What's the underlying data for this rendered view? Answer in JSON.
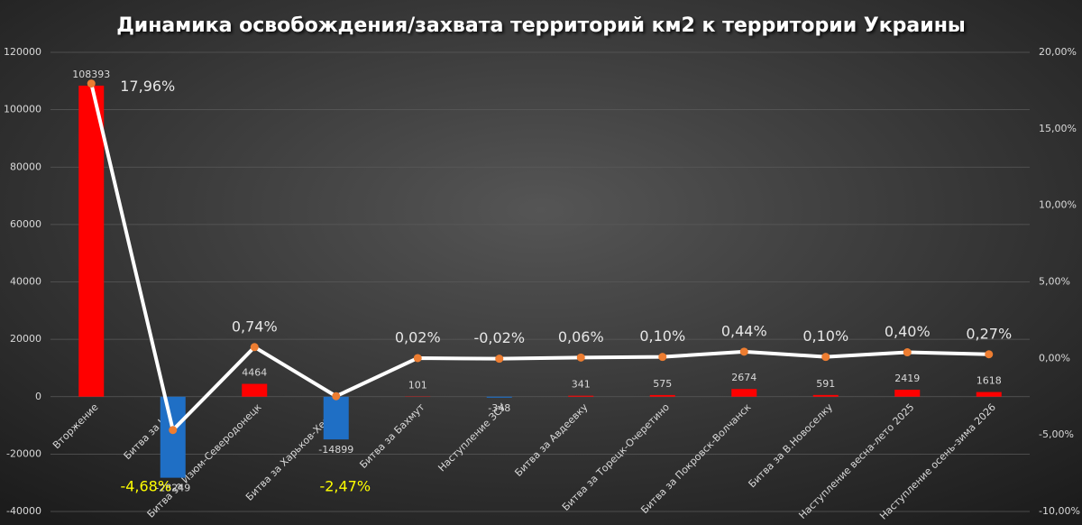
{
  "chart_data": {
    "type": "bar_line",
    "title": "Динамика освобождения/захвата территорий км2 к территории Украины",
    "categories": [
      "Вторжение",
      "Битва за Киев",
      "Битва за Изюм-Северодонецк",
      "Битва за Харьков-Херсон",
      "Битва за Бахмут",
      "Наступление ЗСУ",
      "Битва за Авдеевку",
      "Битва за Торецк-Очеретино",
      "Битва за Покровск-Волчанск",
      "Битва за В.Новоселку",
      "Наступление весна-лето 2025",
      "Наступление осень-зима 2026"
    ],
    "series": [
      {
        "type": "bar",
        "color": "#ff0000",
        "negative_color": "#1f6fc5",
        "values": [
          108393,
          -28249,
          4464,
          -14899,
          101,
          -348,
          341,
          575,
          2674,
          591,
          2419,
          1618
        ]
      },
      {
        "type": "line",
        "axis": "y2",
        "color": "#ffffff",
        "marker_color": "#ed7d31",
        "negative_label_color": "#ffff00",
        "values": [
          17.96,
          -4.68,
          0.74,
          -2.47,
          0.02,
          -0.02,
          0.06,
          0.1,
          0.44,
          0.1,
          0.4,
          0.27
        ],
        "value_labels": [
          "17,96%",
          "-4,68%",
          "0,74%",
          "-2,47%",
          "0,02%",
          "-0,02%",
          "0,06%",
          "0,10%",
          "0,44%",
          "0,10%",
          "0,40%",
          "0,27%"
        ]
      }
    ],
    "ylim": [
      -40000,
      120000
    ],
    "yticks": [
      -40000,
      -20000,
      0,
      20000,
      40000,
      60000,
      80000,
      100000,
      120000
    ],
    "y2lim": [
      -10,
      20
    ],
    "y2ticks": [
      {
        "value": -10,
        "label": "-10,00%"
      },
      {
        "value": -5,
        "label": "-5,00%"
      },
      {
        "value": 0,
        "label": "0,00%"
      },
      {
        "value": 5,
        "label": "5,00%"
      },
      {
        "value": 10,
        "label": "10,00%"
      },
      {
        "value": 15,
        "label": "15,00%"
      },
      {
        "value": 20,
        "label": "20,00%"
      }
    ],
    "grid": true
  }
}
